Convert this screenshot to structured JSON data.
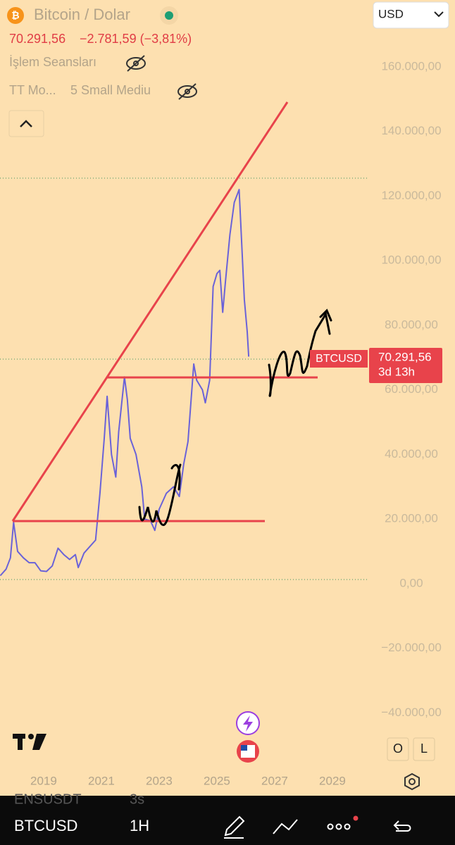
{
  "header": {
    "symbol": "Bitcoin / Dolar",
    "price": "70.291,56",
    "change": "−2.781,59 (−3,81%)",
    "currency": "USD"
  },
  "indicators": [
    "İşlem Seansları",
    "TT Mo...",
    "5 Small Mediu"
  ],
  "chart_data": {
    "type": "line",
    "x": [
      2017.5,
      2017.7,
      2017.85,
      2017.96,
      2018.1,
      2018.3,
      2018.5,
      2018.7,
      2018.9,
      2019.1,
      2019.3,
      2019.5,
      2019.7,
      2019.9,
      2020.1,
      2020.2,
      2020.4,
      2020.6,
      2020.8,
      2020.95,
      2021.1,
      2021.2,
      2021.35,
      2021.5,
      2021.6,
      2021.8,
      2021.9,
      2022.0,
      2022.2,
      2022.4,
      2022.5,
      2022.7,
      2022.85,
      2023.0,
      2023.25,
      2023.5,
      2023.7,
      2023.85,
      2024.0,
      2024.2,
      2024.3,
      2024.5,
      2024.6,
      2024.75,
      2024.87,
      2025.0,
      2025.1,
      2025.2,
      2025.3,
      2025.45,
      2025.6,
      2025.77,
      2025.85,
      2025.95,
      2026.05,
      2026.1
    ],
    "series": [
      {
        "name": "BTCUSD",
        "color": "#6a62d8",
        "values": [
          2500,
          4500,
          8000,
          19000,
          10000,
          8000,
          6500,
          6500,
          4000,
          3800,
          5500,
          11000,
          9000,
          7500,
          9000,
          5000,
          9500,
          11500,
          13500,
          28000,
          45000,
          58000,
          40000,
          33000,
          47000,
          64000,
          57000,
          45000,
          40000,
          30000,
          20000,
          19500,
          16500,
          23000,
          28000,
          30000,
          27000,
          37000,
          44000,
          68000,
          63000,
          60000,
          56000,
          63000,
          92000,
          96000,
          97000,
          84000,
          94000,
          108000,
          118000,
          122000,
          107000,
          88000,
          78000,
          70291.56
        ]
      }
    ],
    "xlim": [
      2017.49,
      2030.22
    ],
    "xticks": [
      2019,
      2021,
      2023,
      2025,
      2027,
      2029
    ],
    "ylim": [
      -46000,
      175000
    ],
    "yticks": [
      {
        "value": -40000,
        "label": "−40.000,00"
      },
      {
        "value": -20000,
        "label": "−20.000,00"
      },
      {
        "value": 0,
        "label": "0,00"
      },
      {
        "value": 20000,
        "label": "20.000,00"
      },
      {
        "value": 40000,
        "label": "40.000,00"
      },
      {
        "value": 60000,
        "label": "60.000,00"
      },
      {
        "value": 80000,
        "label": "80.000,00"
      },
      {
        "value": 100000,
        "label": "100.000,00"
      },
      {
        "value": 120000,
        "label": "120.000,00"
      },
      {
        "value": 140000,
        "label": "140.000,00"
      },
      {
        "value": 160000,
        "label": "160.000,00"
      }
    ],
    "countdown": "3d 13h"
  },
  "buttons": [
    "O",
    "L"
  ],
  "toolbar": {
    "ticker_partial": "ENSUSDT",
    "timer_partial": "3s",
    "symbol": "BTCUSD",
    "interval": "1H"
  }
}
